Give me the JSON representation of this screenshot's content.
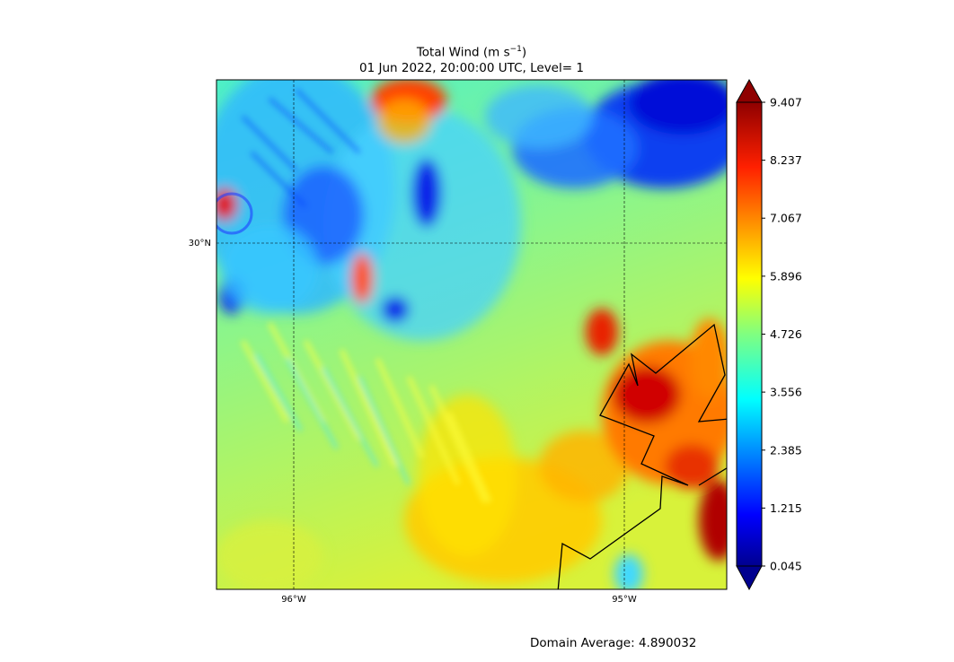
{
  "title": {
    "line1_main": "Total Wind (m s",
    "line1_sup": "−1",
    "line1_end": ")",
    "line2": "01 Jun 2022, 20:00:00 UTC, Level= 1"
  },
  "map": {
    "lat_labels": [
      "30°N"
    ],
    "lon_labels": [
      "96°W",
      "95°W"
    ],
    "field": "total wind speed",
    "colormap": "jet"
  },
  "colorbar": {
    "tick_labels": [
      "9.407",
      "8.237",
      "7.067",
      "5.896",
      "4.726",
      "3.556",
      "2.385",
      "1.215",
      "0.045"
    ],
    "min": 0.045,
    "max": 9.407,
    "extend": "both"
  },
  "footer": {
    "domain_average_label": "Domain Average: 4.890032"
  }
}
